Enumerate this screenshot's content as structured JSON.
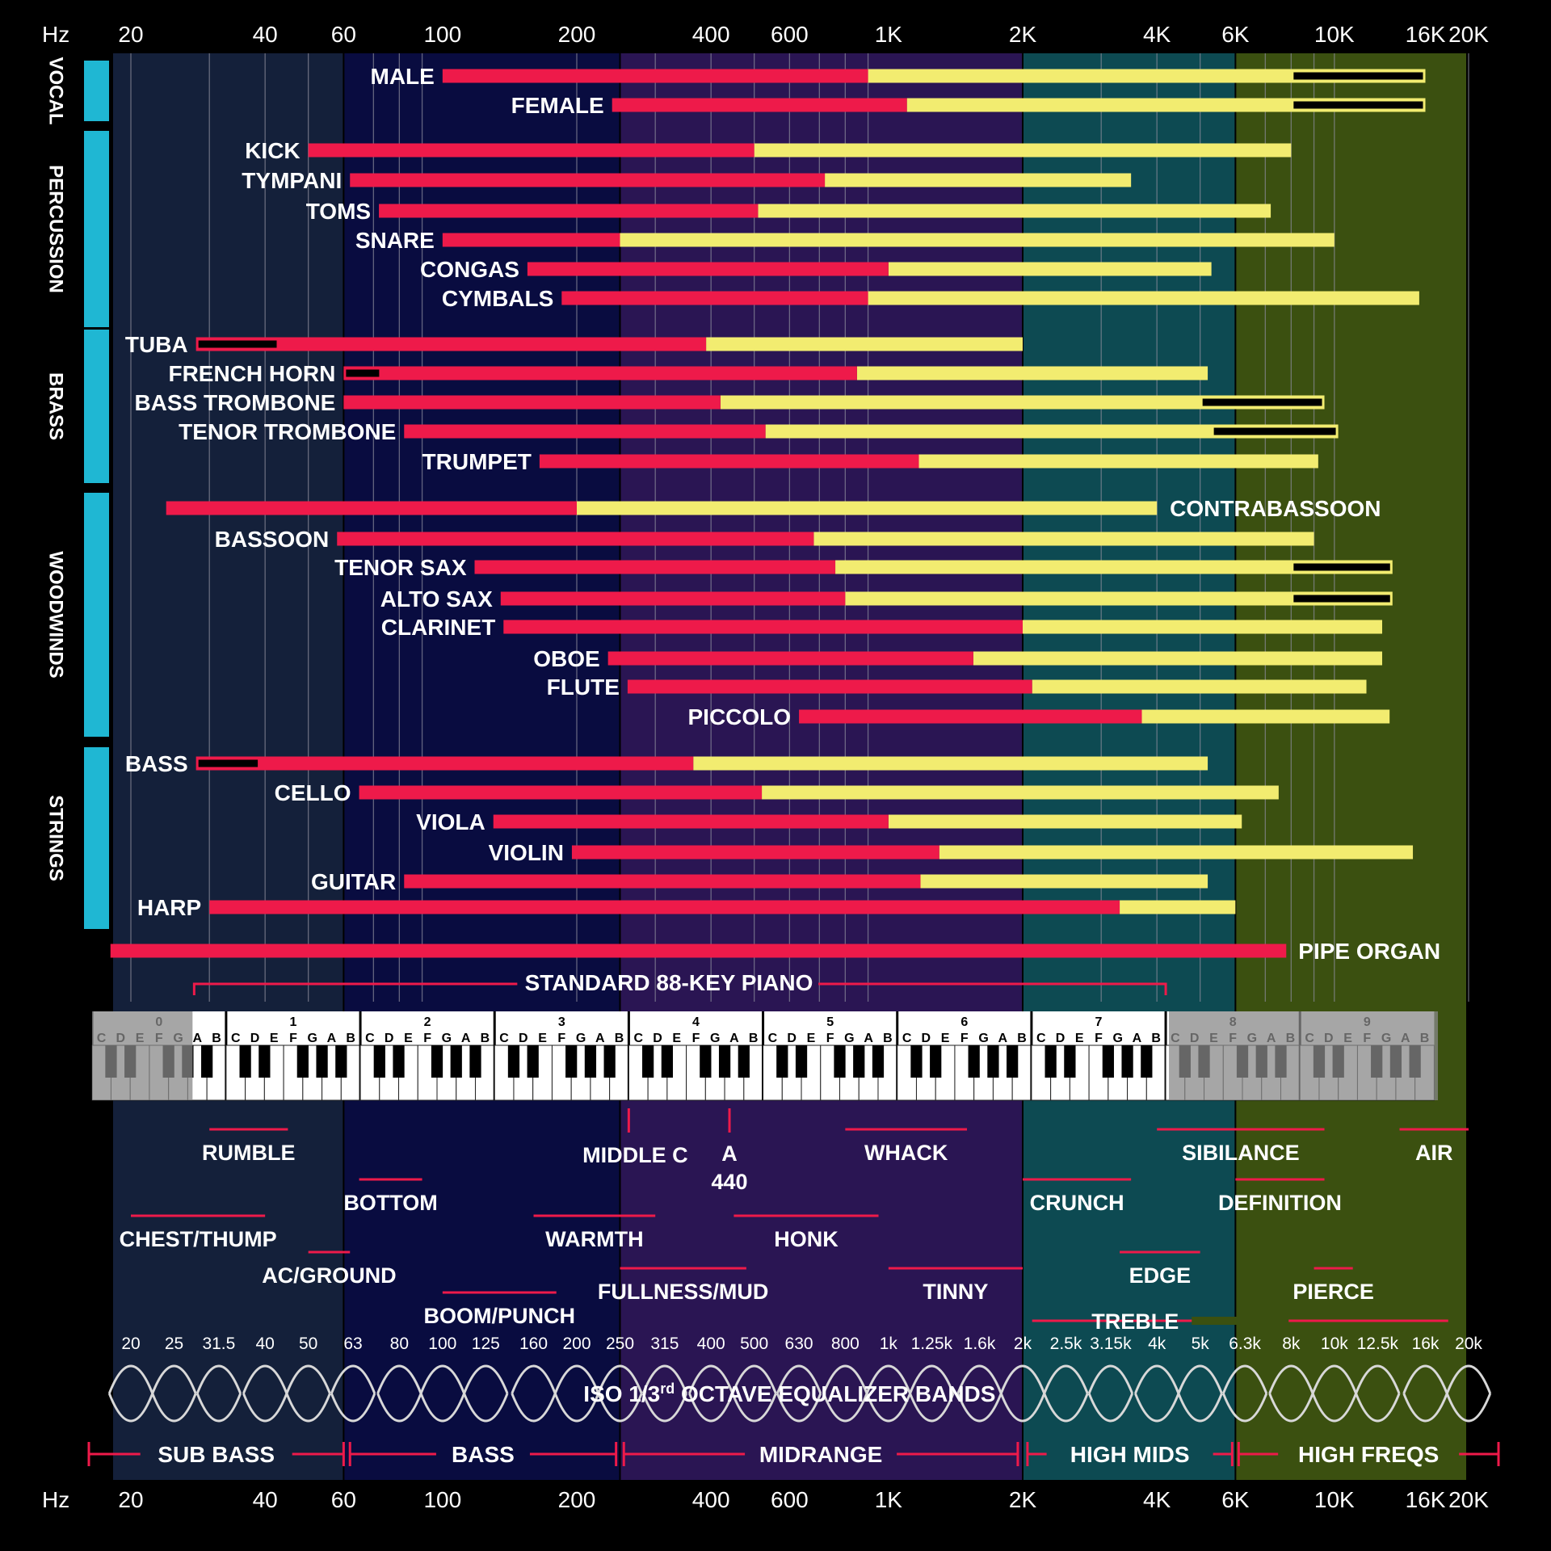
{
  "chart_data": {
    "type": "frequency-range-bar",
    "x_scale": "log",
    "x_unit": "Hz",
    "xlim": [
      17,
      22000
    ],
    "axis_unit_label": "Hz",
    "axis_ticks": [
      {
        "value": 20,
        "label": "20"
      },
      {
        "value": 40,
        "label": "40"
      },
      {
        "value": 60,
        "label": "60"
      },
      {
        "value": 100,
        "label": "100"
      },
      {
        "value": 200,
        "label": "200"
      },
      {
        "value": 400,
        "label": "400"
      },
      {
        "value": 600,
        "label": "600"
      },
      {
        "value": 1000,
        "label": "1K"
      },
      {
        "value": 2000,
        "label": "2K"
      },
      {
        "value": 4000,
        "label": "4K"
      },
      {
        "value": 6000,
        "label": "6K"
      },
      {
        "value": 10000,
        "label": "10K"
      },
      {
        "value": 16000,
        "label": "16K"
      },
      {
        "value": 20000,
        "label": "20K"
      }
    ],
    "legend": {
      "fundamental_color": "#ee1a4a",
      "harmonics_color": "#f2ec70",
      "extended_color": "#000000"
    },
    "regions": [
      {
        "name": "SUB BASS",
        "start": 17,
        "end": 60,
        "color": "#14203a"
      },
      {
        "name": "BASS",
        "start": 60,
        "end": 250,
        "color": "#090c40"
      },
      {
        "name": "MIDRANGE",
        "start": 250,
        "end": 2000,
        "color": "#2a1553"
      },
      {
        "name": "HIGH MIDS",
        "start": 2000,
        "end": 6000,
        "color": "#0d4a52"
      },
      {
        "name": "HIGH FREQS",
        "start": 6000,
        "end": 22000,
        "color": "#3b5010"
      }
    ],
    "categories": [
      {
        "name": "VOCAL",
        "instruments": [
          {
            "name": "MALE",
            "fund": [
              100,
              900
            ],
            "harm": [
              900,
              16000
            ],
            "ext": [
              8000,
              16000
            ]
          },
          {
            "name": "FEMALE",
            "fund": [
              240,
              1100
            ],
            "harm": [
              1100,
              16000
            ],
            "ext": [
              8000,
              16000
            ]
          }
        ]
      },
      {
        "name": "PERCUSSION",
        "instruments": [
          {
            "name": "KICK",
            "fund": [
              50,
              500
            ],
            "harm": [
              500,
              8000
            ]
          },
          {
            "name": "TYMPANI",
            "fund": [
              62,
              720
            ],
            "harm": [
              720,
              3500
            ]
          },
          {
            "name": "TOMS",
            "fund": [
              72,
              510
            ],
            "harm": [
              510,
              7200
            ]
          },
          {
            "name": "SNARE",
            "fund": [
              100,
              250
            ],
            "harm": [
              250,
              10000
            ]
          },
          {
            "name": "CONGAS",
            "fund": [
              155,
              1000
            ],
            "harm": [
              1000,
              5300
            ]
          },
          {
            "name": "CYMBALS",
            "fund": [
              185,
              900
            ],
            "harm": [
              900,
              15500
            ]
          }
        ]
      },
      {
        "name": "BRASS",
        "instruments": [
          {
            "name": "TUBA",
            "fund": [
              28,
              390
            ],
            "harm": [
              390,
              2000
            ],
            "ext": [
              28,
              43
            ]
          },
          {
            "name": "FRENCH HORN",
            "fund": [
              60,
              850
            ],
            "harm": [
              850,
              5200
            ],
            "ext": [
              60,
              73
            ]
          },
          {
            "name": "BASS TROMBONE",
            "fund": [
              60,
              420
            ],
            "harm": [
              420,
              9500
            ],
            "ext": [
              5000,
              9500
            ]
          },
          {
            "name": "TENOR TROMBONE",
            "fund": [
              82,
              530
            ],
            "harm": [
              530,
              10200
            ],
            "ext": [
              5300,
              10200
            ]
          },
          {
            "name": "TRUMPET",
            "fund": [
              165,
              1170
            ],
            "harm": [
              1170,
              9200
            ]
          }
        ]
      },
      {
        "name": "WOODWINDS",
        "instruments": [
          {
            "name": "CONTRABASSOON",
            "fund": [
              24,
              200
            ],
            "harm": [
              200,
              4000
            ]
          },
          {
            "name": "BASSOON",
            "fund": [
              58,
              680
            ],
            "harm": [
              680,
              9000
            ]
          },
          {
            "name": "TENOR SAX",
            "fund": [
              118,
              760
            ],
            "harm": [
              760,
              13500
            ],
            "ext": [
              8000,
              13500
            ]
          },
          {
            "name": "ALTO SAX",
            "fund": [
              135,
              800
            ],
            "harm": [
              800,
              13500
            ],
            "ext": [
              8000,
              13500
            ]
          },
          {
            "name": "CLARINET",
            "fund": [
              137,
              2000
            ],
            "harm": [
              2000,
              12800
            ]
          },
          {
            "name": "OBOE",
            "fund": [
              235,
              1550
            ],
            "harm": [
              1550,
              12800
            ]
          },
          {
            "name": "FLUTE",
            "fund": [
              260,
              2100
            ],
            "harm": [
              2100,
              11800
            ]
          },
          {
            "name": "PICCOLO",
            "fund": [
              630,
              3700
            ],
            "harm": [
              3700,
              13300
            ]
          }
        ]
      },
      {
        "name": "STRINGS",
        "instruments": [
          {
            "name": "BASS",
            "fund": [
              28,
              365
            ],
            "harm": [
              365,
              5200
            ],
            "ext": [
              28,
              39
            ]
          },
          {
            "name": "CELLO",
            "fund": [
              65,
              520
            ],
            "harm": [
              520,
              7500
            ]
          },
          {
            "name": "VIOLA",
            "fund": [
              130,
              1000
            ],
            "harm": [
              1000,
              6200
            ]
          },
          {
            "name": "VIOLIN",
            "fund": [
              195,
              1300
            ],
            "harm": [
              1300,
              15000
            ]
          },
          {
            "name": "GUITAR",
            "fund": [
              82,
              1180
            ],
            "harm": [
              1180,
              5200
            ]
          },
          {
            "name": "HARP",
            "fund": [
              30,
              3300
            ],
            "harm": [
              3300,
              6000
            ]
          }
        ]
      }
    ],
    "pipe_organ": {
      "name": "PIPE ORGAN",
      "fund": [
        18,
        7800
      ]
    },
    "piano": {
      "label": "STANDARD 88-KEY PIANO",
      "range": [
        27.5,
        4186
      ],
      "octave_numbers": [
        "0",
        "1",
        "2",
        "3",
        "4",
        "5",
        "6",
        "7",
        "8",
        "9"
      ],
      "note_letters": [
        "C",
        "D",
        "E",
        "F",
        "G",
        "A",
        "B"
      ],
      "middle_c": {
        "label": "MIDDLE C",
        "freq": 261.6
      },
      "a440": {
        "label_line1": "A",
        "label_line2": "440",
        "freq": 440
      }
    },
    "descriptors": [
      {
        "label": "RUMBLE",
        "start": 30,
        "end": 45,
        "row": 0
      },
      {
        "label": "CHEST/THUMP",
        "start": 20,
        "end": 40,
        "row": 2
      },
      {
        "label": "BOTTOM",
        "start": 65,
        "end": 90,
        "row": 1
      },
      {
        "label": "AC/GROUND",
        "start": 50,
        "end": 62,
        "row": 3
      },
      {
        "label": "BOOM/PUNCH",
        "start": 100,
        "end": 180,
        "row": 5
      },
      {
        "label": "WARMTH",
        "start": 160,
        "end": 300,
        "row": 2
      },
      {
        "label": "MIDDLE C",
        "start": 261.6,
        "end": 261.6,
        "row": 0
      },
      {
        "label": "FULLNESS/MUD",
        "start": 250,
        "end": 480,
        "row": 4
      },
      {
        "label": "WHACK",
        "start": 800,
        "end": 1500,
        "row": 0
      },
      {
        "label": "HONK",
        "start": 450,
        "end": 950,
        "row": 2
      },
      {
        "label": "TINNY",
        "start": 1000,
        "end": 2000,
        "row": 4
      },
      {
        "label": "CRUNCH",
        "start": 2000,
        "end": 3500,
        "row": 1
      },
      {
        "label": "SIBILANCE",
        "start": 4000,
        "end": 9500,
        "row": 0
      },
      {
        "label": "EDGE",
        "start": 3300,
        "end": 5000,
        "row": 3
      },
      {
        "label": "DEFINITION",
        "start": 6000,
        "end": 9500,
        "row": 1
      },
      {
        "label": "PIERCE",
        "start": 9000,
        "end": 11000,
        "row": 4
      },
      {
        "label": "AIR",
        "start": 14000,
        "end": 20000,
        "row": 0
      },
      {
        "label": "TREBLE",
        "start": 2100,
        "end": 18000,
        "row": 6
      }
    ],
    "eq_bands": {
      "title_main": "ISO 1/3",
      "title_sup": "rd",
      "title_rest": " OCTAVE EQUALIZER BANDS",
      "bands": [
        {
          "value": 20,
          "label": "20"
        },
        {
          "value": 25,
          "label": "25"
        },
        {
          "value": 31.5,
          "label": "31.5"
        },
        {
          "value": 40,
          "label": "40"
        },
        {
          "value": 50,
          "label": "50"
        },
        {
          "value": 63,
          "label": "63"
        },
        {
          "value": 80,
          "label": "80"
        },
        {
          "value": 100,
          "label": "100"
        },
        {
          "value": 125,
          "label": "125"
        },
        {
          "value": 160,
          "label": "160"
        },
        {
          "value": 200,
          "label": "200"
        },
        {
          "value": 250,
          "label": "250"
        },
        {
          "value": 315,
          "label": "315"
        },
        {
          "value": 400,
          "label": "400"
        },
        {
          "value": 500,
          "label": "500"
        },
        {
          "value": 630,
          "label": "630"
        },
        {
          "value": 800,
          "label": "800"
        },
        {
          "value": 1000,
          "label": "1k"
        },
        {
          "value": 1250,
          "label": "1.25k"
        },
        {
          "value": 1600,
          "label": "1.6k"
        },
        {
          "value": 2000,
          "label": "2k"
        },
        {
          "value": 2500,
          "label": "2.5k"
        },
        {
          "value": 3150,
          "label": "3.15k"
        },
        {
          "value": 4000,
          "label": "4k"
        },
        {
          "value": 5000,
          "label": "5k"
        },
        {
          "value": 6300,
          "label": "6.3k"
        },
        {
          "value": 8000,
          "label": "8k"
        },
        {
          "value": 10000,
          "label": "10k"
        },
        {
          "value": 12500,
          "label": "12.5k"
        },
        {
          "value": 16000,
          "label": "16k"
        },
        {
          "value": 20000,
          "label": "20k"
        }
      ]
    },
    "range_brackets": [
      {
        "label": "SUB BASS",
        "start": 17,
        "end": 60
      },
      {
        "label": "BASS",
        "start": 62,
        "end": 245
      },
      {
        "label": "MIDRANGE",
        "start": 255,
        "end": 1950
      },
      {
        "label": "HIGH MIDS",
        "start": 2050,
        "end": 5900
      },
      {
        "label": "HIGH FREQS",
        "start": 6100,
        "end": 22000
      }
    ]
  }
}
